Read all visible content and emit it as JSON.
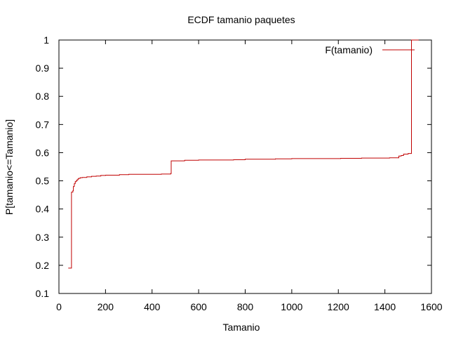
{
  "chart_data": {
    "type": "line",
    "title": "ECDF tamanio paquetes",
    "xlabel": "Tamanio",
    "ylabel": "P[tamanio<=Tamanio]",
    "xlim": [
      0,
      1600
    ],
    "ylim": [
      0.1,
      1
    ],
    "xticks": [
      0,
      200,
      400,
      600,
      800,
      1000,
      1200,
      1400,
      1600
    ],
    "yticks": [
      0.1,
      0.2,
      0.3,
      0.4,
      0.5,
      0.6,
      0.7,
      0.8,
      0.9,
      1
    ],
    "grid": false,
    "legend_position": "top-right",
    "series": [
      {
        "name": "F(tamanio)",
        "color": "#c00000",
        "step": true,
        "x": [
          40,
          54,
          60,
          62,
          66,
          70,
          74,
          78,
          82,
          86,
          92,
          100,
          120,
          140,
          160,
          180,
          200,
          260,
          300,
          440,
          480,
          482,
          540,
          600,
          750,
          800,
          930,
          1000,
          1210,
          1300,
          1420,
          1460,
          1470,
          1480,
          1500,
          1514,
          1514,
          1545
        ],
        "y": [
          0.19,
          0.46,
          0.465,
          0.48,
          0.49,
          0.497,
          0.5,
          0.504,
          0.507,
          0.509,
          0.511,
          0.512,
          0.514,
          0.516,
          0.517,
          0.519,
          0.52,
          0.522,
          0.523,
          0.524,
          0.526,
          0.571,
          0.573,
          0.574,
          0.575,
          0.577,
          0.578,
          0.579,
          0.58,
          0.581,
          0.582,
          0.588,
          0.59,
          0.595,
          0.597,
          0.598,
          1.0,
          1.0
        ]
      }
    ]
  }
}
